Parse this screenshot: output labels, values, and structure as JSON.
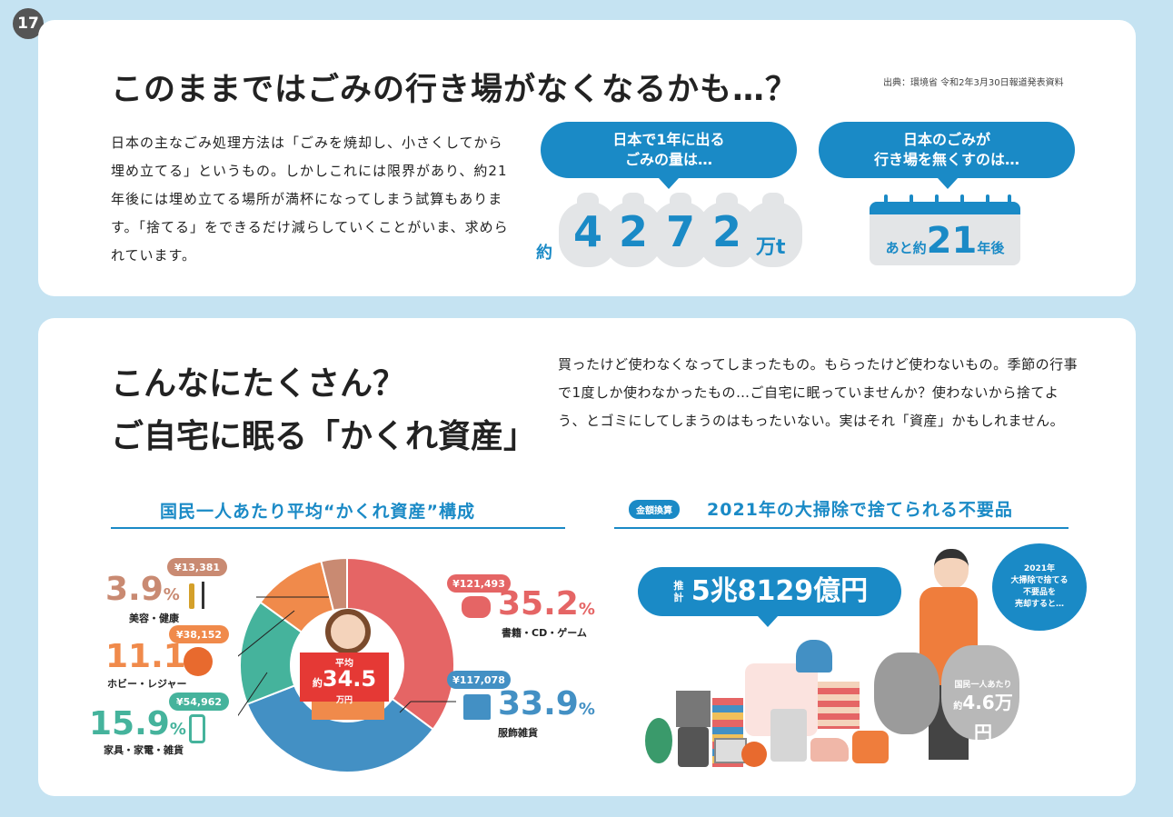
{
  "page_number": "17",
  "top": {
    "title": "このままではごみの行き場がなくなるかも…？",
    "source": "出典：環境省 令和2年3月30日報道発表資料",
    "body": "日本の主なごみ処理方法は「ごみを焼却し、小さくしてから埋め立てる」というもの。しかしこれには限界があり、約21年後には埋め立てる場所が満杯になってしまう試算もあります。「捨てる」をできるだけ減らしていくことがいま、求められています。",
    "bubble1": "日本で1年に出る\nごみの量は…",
    "amount_prefix": "約",
    "amount_digits": [
      "4",
      "2",
      "7",
      "2"
    ],
    "amount_unit": "万t",
    "bubble2": "日本のごみが\n行き場を無くすのは…",
    "years_prefix": "あと約",
    "years_value": "21",
    "years_suffix": "年後"
  },
  "bottom": {
    "title_line1": "こんなにたくさん？",
    "title_line2": "ご自宅に眠る「かくれ資産」",
    "body": "買ったけど使わなくなってしまったもの。もらったけど使わないもの。季節の行事で1度しか使わなかったもの…ご自宅に眠っていませんか？使わないから捨てよう、とゴミにしてしまうのはもったいない。実はそれ「資産」かもしれません。",
    "left_section_title": "国民一人あたり平均“かくれ資産”構成",
    "center_label": "平均",
    "center_prefix": "約",
    "center_value": "34.5",
    "center_unit": "万円",
    "right_tag": "金額換算",
    "right_section_title": "2021年の大掃除で捨てられる不要品",
    "total_prefix": "推計",
    "total_value": "5兆8129億円",
    "side_bubble": "2021年\n大掃除で捨てる\n不要品を\n売却すると…",
    "per_person_label": "国民一人あたり",
    "per_person_prefix": "約",
    "per_person_value": "4.6万円"
  },
  "chart_data": {
    "type": "pie",
    "categories": [
      "書籍・CD・ゲーム",
      "服飾雑貨",
      "家具・家電・雑貨",
      "ホビー・レジャー",
      "美容・健康"
    ],
    "values": [
      35.2,
      33.9,
      15.9,
      11.1,
      3.9
    ],
    "amounts": [
      "¥121,493",
      "¥117,078",
      "¥54,962",
      "¥38,152",
      "¥13,381"
    ],
    "value_unit": "%",
    "colors": [
      "#e56565",
      "#4390c4",
      "#45b39c",
      "#f08a4b",
      "#c98a72"
    ]
  }
}
